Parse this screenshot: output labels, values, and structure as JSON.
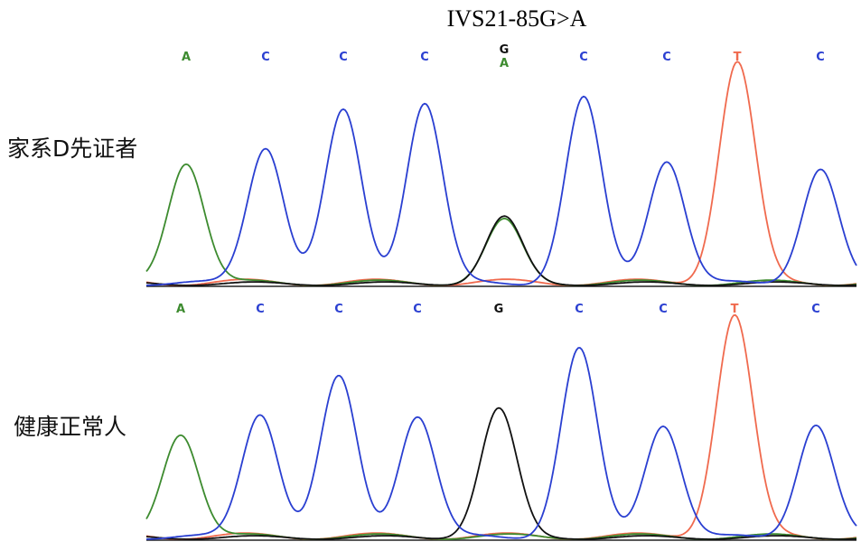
{
  "title": "IVS21-85G>A",
  "colors": {
    "A": "#3d8b2f",
    "C": "#2a3fd1",
    "G": "#111111",
    "T": "#f06a4e"
  },
  "chart_data": [
    {
      "type": "line",
      "label": "家系D先证者",
      "bases": [
        "A",
        "C",
        "C",
        "C",
        "G/A",
        "C",
        "C",
        "T",
        "C"
      ],
      "peaks": [
        {
          "base": "A",
          "height": 0.55
        },
        {
          "base": "C",
          "height": 0.62
        },
        {
          "base": "C",
          "height": 0.78
        },
        {
          "base": "C",
          "height": 0.82
        },
        {
          "base": "G",
          "height": 0.3,
          "secondary": {
            "base": "A",
            "height": 0.28
          }
        },
        {
          "base": "C",
          "height": 0.84
        },
        {
          "base": "C",
          "height": 0.56
        },
        {
          "base": "T",
          "height": 1.0
        },
        {
          "base": "C",
          "height": 0.52
        }
      ]
    },
    {
      "type": "line",
      "label": "健康正常人",
      "bases": [
        "A",
        "C",
        "C",
        "C",
        "G",
        "C",
        "C",
        "T",
        "C"
      ],
      "peaks": [
        {
          "base": "A",
          "height": 0.47
        },
        {
          "base": "C",
          "height": 0.56
        },
        {
          "base": "C",
          "height": 0.72
        },
        {
          "base": "C",
          "height": 0.55
        },
        {
          "base": "G",
          "height": 0.58
        },
        {
          "base": "C",
          "height": 0.85
        },
        {
          "base": "C",
          "height": 0.51
        },
        {
          "base": "T",
          "height": 1.0
        },
        {
          "base": "C",
          "height": 0.51
        }
      ]
    }
  ]
}
